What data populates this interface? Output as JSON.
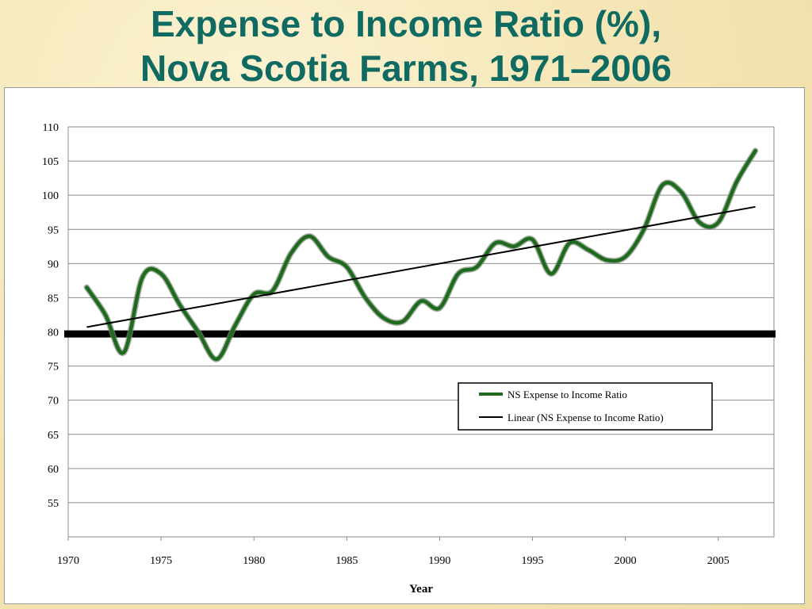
{
  "title": {
    "line1": "Expense to Income Ratio (%),",
    "line2": "Nova Scotia Farms, 1971–2006"
  },
  "colors": {
    "title": "#0f6a62",
    "series": "#1e6b1e",
    "trend": "#000000",
    "reference": "#000000",
    "grid": "#8c8c8c"
  },
  "chart_data": {
    "type": "line",
    "title": "Expense to Income Ratio (%), Nova Scotia Farms, 1971–2006",
    "xlabel": "Year",
    "ylabel": "",
    "xlim": [
      1970,
      2008
    ],
    "ylim": [
      50,
      110
    ],
    "x_ticks": [
      "1970",
      "1975",
      "1980",
      "1985",
      "1990",
      "1995",
      "2000",
      "2005"
    ],
    "y_ticks": [
      "55",
      "60",
      "65",
      "70",
      "75",
      "80",
      "85",
      "90",
      "95",
      "100",
      "105",
      "110"
    ],
    "grid": true,
    "legend_position": "center-right",
    "series": [
      {
        "name": "NS Expense to Income Ratio",
        "x": [
          1971,
          1972,
          1973,
          1974,
          1975,
          1976,
          1977,
          1978,
          1979,
          1980,
          1981,
          1982,
          1983,
          1984,
          1985,
          1986,
          1987,
          1988,
          1989,
          1990,
          1991,
          1992,
          1993,
          1994,
          1995,
          1996,
          1997,
          1998,
          1999,
          2000,
          2001,
          2002,
          2003,
          2004,
          2005,
          2006,
          2007
        ],
        "values": [
          86.5,
          82.5,
          77.0,
          88.0,
          88.5,
          84.0,
          80.0,
          76.0,
          81.0,
          85.5,
          86.0,
          91.5,
          94.0,
          91.0,
          89.5,
          85.0,
          82.0,
          81.5,
          84.5,
          83.5,
          88.5,
          89.5,
          93.0,
          92.5,
          93.5,
          88.5,
          93.0,
          92.0,
          90.5,
          91.0,
          95.0,
          101.5,
          100.5,
          96.0,
          96.0,
          102.0,
          106.5
        ]
      },
      {
        "name": "Linear (NS Expense to Income Ratio)",
        "x": [
          1971,
          2007
        ],
        "values": [
          80.7,
          98.3
        ]
      }
    ],
    "reference_line": {
      "y": 79.7
    }
  }
}
